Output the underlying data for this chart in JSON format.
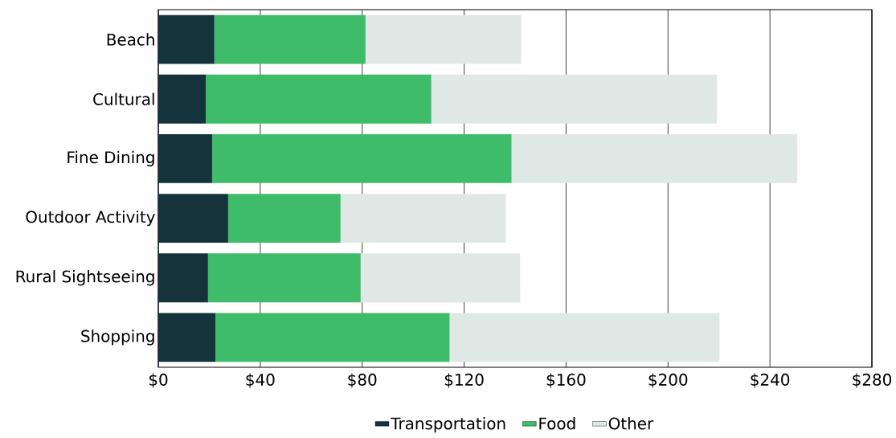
{
  "chart_data": {
    "type": "bar",
    "orientation": "horizontal",
    "stacked": true,
    "categories": [
      "Beach",
      "Cultural",
      "Fine Dining",
      "Outdoor Activity",
      "Rural Sightseeing",
      "Shopping"
    ],
    "series": [
      {
        "name": "Transportation",
        "color": "#14333a",
        "values": [
          22.0,
          18.6,
          21.1,
          27.4,
          19.5,
          22.4
        ]
      },
      {
        "name": "Food",
        "color": "#3ebc6a",
        "values": [
          59.3,
          88.5,
          117.5,
          44.1,
          59.9,
          91.9
        ]
      },
      {
        "name": "Other",
        "color": "#dfe8e5",
        "values": [
          61.1,
          112.1,
          112.1,
          64.9,
          62.6,
          105.9
        ]
      }
    ],
    "xlim": [
      0,
      280
    ],
    "xticks": [
      {
        "value": 0,
        "label": "$0"
      },
      {
        "value": 40,
        "label": "$40"
      },
      {
        "value": 80,
        "label": "$80"
      },
      {
        "value": 120,
        "label": "$120"
      },
      {
        "value": 160,
        "label": "$160"
      },
      {
        "value": 200,
        "label": "$200"
      },
      {
        "value": 240,
        "label": "$240"
      },
      {
        "value": 280,
        "label": "$280"
      }
    ],
    "grid": "x",
    "legend": "bottom"
  }
}
